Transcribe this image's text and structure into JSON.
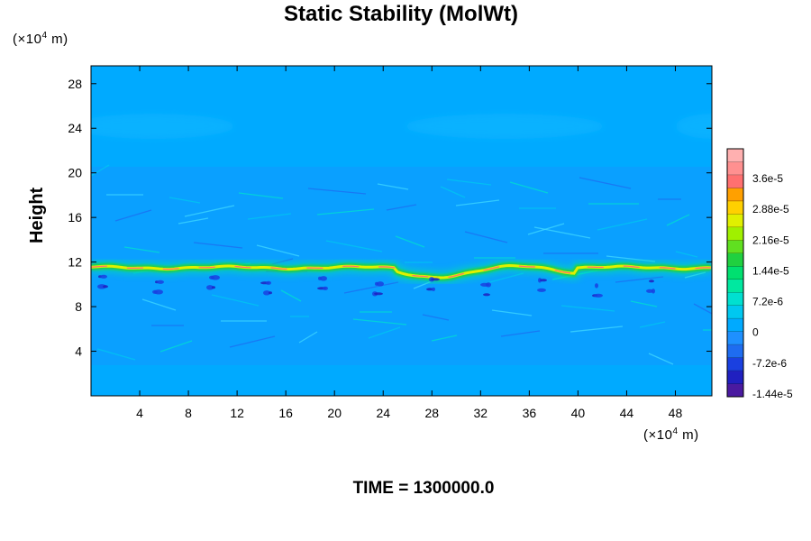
{
  "chart_data": {
    "type": "heatmap",
    "title": "Static Stability (MolWt)",
    "ylabel": "Height",
    "xunit": "(×10",
    "xunit_exp": "4",
    "xunit_tail": " m)",
    "yunit": "(×10",
    "yunit_exp": "4",
    "yunit_tail": " m)",
    "xlim": [
      0,
      51
    ],
    "ylim": [
      0,
      29.6
    ],
    "xticks": [
      "4",
      "8",
      "12",
      "16",
      "20",
      "24",
      "28",
      "32",
      "36",
      "40",
      "44",
      "48"
    ],
    "yticks": [
      "4",
      "8",
      "12",
      "16",
      "20",
      "24",
      "28"
    ],
    "colorbar_labels": [
      "3.6e-5",
      "2.88e-5",
      "2.16e-5",
      "1.44e-5",
      "7.2e-6",
      "0",
      "-7.2e-6",
      "-1.44e-5"
    ],
    "colorbar_colors": [
      "#4a1aa0",
      "#2020c0",
      "#1a40e0",
      "#1e6cf0",
      "#1e90ff",
      "#00aaff",
      "#00c8f0",
      "#00e0d0",
      "#00e8a0",
      "#00e070",
      "#20d040",
      "#60e020",
      "#a0f000",
      "#e0f000",
      "#ffd000",
      "#ffa000",
      "#ff7070",
      "#ff9090",
      "#ffb0b0"
    ],
    "background_color": "#00aaff",
    "band_color": "#1e90ff",
    "max_band_height": 11.5,
    "time_label": "TIME = 1300000.0"
  }
}
